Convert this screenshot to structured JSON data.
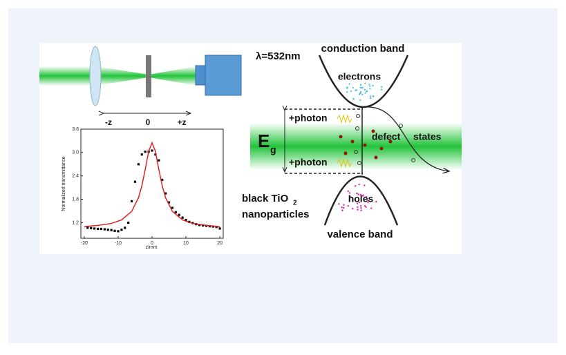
{
  "chart_data": {
    "type": "scatter",
    "x_label": "z/mm",
    "y_label": "Normalized transmittance",
    "xlim": [
      -21,
      21
    ],
    "xticks": [
      -20,
      -10,
      0,
      10,
      20
    ],
    "ylim": [
      0.8,
      3.6
    ],
    "yticks": [
      {
        "value": 1.2,
        "label": "1.2"
      },
      {
        "value": 1.8,
        "label": "1.8"
      },
      {
        "value": 2.4,
        "label": "2.4"
      },
      {
        "value": 3,
        "label": "3.0"
      },
      {
        "value": 3.6,
        "label": "3.6"
      }
    ],
    "series": [
      {
        "type": "scatter",
        "color": "#000000",
        "x": [
          -19,
          -18,
          -17,
          -16,
          -15,
          -14,
          -13,
          -12,
          -11,
          -10,
          -9,
          -8,
          -7,
          -6,
          -5,
          -4,
          -3,
          -2,
          -1,
          0,
          1,
          2,
          3,
          4,
          5,
          6,
          7,
          8,
          9,
          10,
          11,
          12,
          13,
          14,
          15,
          16,
          17,
          18,
          19,
          20
        ],
        "values": [
          1.07,
          1.06,
          1.05,
          1.04,
          1.04,
          1.03,
          1.02,
          1.01,
          0.99,
          0.98,
          1.02,
          1.07,
          1.2,
          1.75,
          2.25,
          2.7,
          2.95,
          3.02,
          3.02,
          3.05,
          2.95,
          2.8,
          2.3,
          1.95,
          1.72,
          1.58,
          1.47,
          1.4,
          1.33,
          1.27,
          1.22,
          1.19,
          1.16,
          1.14,
          1.13,
          1.12,
          1.11,
          1.1,
          1.09,
          1.05
        ]
      },
      {
        "type": "line",
        "color": "#e02020",
        "x": [
          -20,
          -16,
          -12,
          -9,
          -6,
          -4,
          -3,
          -2,
          -1,
          0,
          1,
          2,
          3,
          4,
          6,
          9,
          12,
          16,
          20
        ],
        "values": [
          1.1,
          1.13,
          1.18,
          1.27,
          1.49,
          1.84,
          2.15,
          2.57,
          3.03,
          3.25,
          3.03,
          2.57,
          2.15,
          1.84,
          1.49,
          1.27,
          1.18,
          1.13,
          1.1
        ]
      }
    ]
  },
  "figure": {
    "minus_z": "-z",
    "zero": "0",
    "plus_z": "+z",
    "wavelength": "λ=532nm",
    "conduction_band": "conduction band",
    "electrons": "electrons",
    "photon_top": "+photon",
    "photon_bottom": "+photon",
    "eg": "E",
    "eg_sub": "g",
    "defect": "defect",
    "states": "states",
    "material": "black TiO",
    "material_sub": "2",
    "material_line2": "nanoparticles",
    "holes": "holes",
    "valence_band": "valence band"
  }
}
